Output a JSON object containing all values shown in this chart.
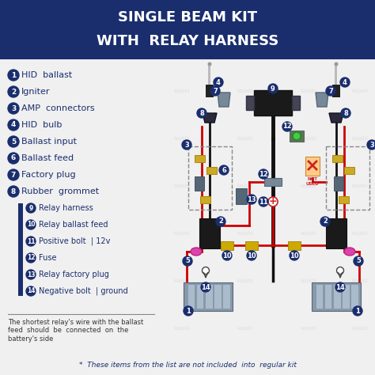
{
  "title_line1": "SINGLE BEAM KIT",
  "title_line2": "WITH  RELAY HARNESS",
  "title_bg_color": "#1a2e6e",
  "title_text_color": "#ffffff",
  "bg_color": "#f0f0f0",
  "legend_items": [
    {
      "num": "1",
      "text": "HID  ballast",
      "relay": false
    },
    {
      "num": "2",
      "text": "Igniter",
      "relay": false
    },
    {
      "num": "3",
      "text": "AMP  connectors",
      "relay": false
    },
    {
      "num": "4",
      "text": "HID  bulb",
      "relay": false
    },
    {
      "num": "5",
      "text": "Ballast input",
      "relay": false
    },
    {
      "num": "6",
      "text": "Ballast feed",
      "relay": false
    },
    {
      "num": "7",
      "text": "Factory plug",
      "relay": false
    },
    {
      "num": "8",
      "text": "Rubber  grommet",
      "relay": false
    },
    {
      "num": "9",
      "text": "Relay harness",
      "relay": true
    },
    {
      "num": "10",
      "text": "Relay ballast feed",
      "relay": true
    },
    {
      "num": "11",
      "text": "Positive bolt  | 12v",
      "relay": true
    },
    {
      "num": "12",
      "text": "Fuse",
      "relay": true
    },
    {
      "num": "13",
      "text": "Relay factory plug",
      "relay": true
    },
    {
      "num": "14",
      "text": "Negative bolt  | ground",
      "relay": true
    }
  ],
  "note_text": "The shortest relay's wire with the ballast\nfeed  should  be  connected  on  the\nbattery's side",
  "footer_text": "*  These items from the list are not included  into  regular kit",
  "dot_color": "#1a2e6e",
  "relay_bar_color": "#1a2e6e",
  "wire_red": "#cc0000",
  "wire_black": "#111111"
}
